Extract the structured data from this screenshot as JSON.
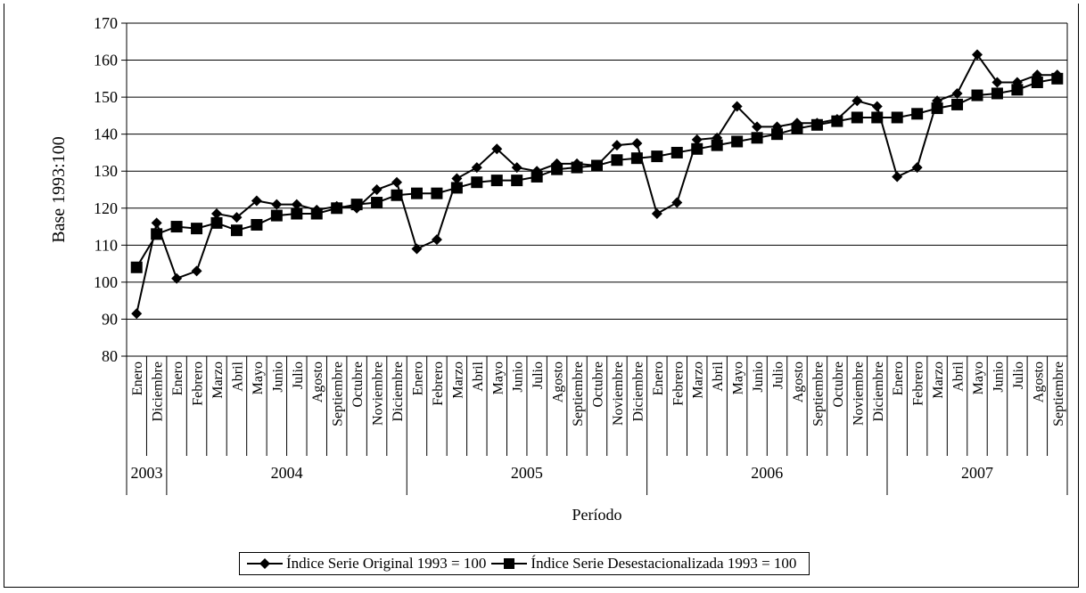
{
  "chart_data": {
    "type": "line",
    "title": "",
    "ylabel": "Base 1993:100",
    "xlabel": "Período",
    "ylim": [
      80,
      170
    ],
    "yticks": [
      80,
      90,
      100,
      110,
      120,
      130,
      140,
      150,
      160,
      170
    ],
    "grid": "horizontal",
    "legend_position": "bottom",
    "categories": [
      "Enero",
      "Diciembre",
      "Enero",
      "Febrero",
      "Marzo",
      "Abril",
      "Mayo",
      "Junio",
      "Julio",
      "Agosto",
      "Septiembre",
      "Octubre",
      "Noviembre",
      "Diciembre",
      "Enero",
      "Febrero",
      "Marzo",
      "Abril",
      "Mayo",
      "Junio",
      "Julio",
      "Agosto",
      "Septiembre",
      "Octubre",
      "Noviembre",
      "Diciembre",
      "Enero",
      "Febrero",
      "Marzo",
      "Abril",
      "Mayo",
      "Junio",
      "Julio",
      "Agosto",
      "Septiembre",
      "Octubre",
      "Noviembre",
      "Diciembre",
      "Enero",
      "Febrero",
      "Marzo",
      "Abril",
      "Mayo",
      "Junio",
      "Julio",
      "Agosto",
      "Septiembre"
    ],
    "year_groups": [
      {
        "label": "2003",
        "count": 2
      },
      {
        "label": "2004",
        "count": 12
      },
      {
        "label": "2005",
        "count": 12
      },
      {
        "label": "2006",
        "count": 12
      },
      {
        "label": "2007",
        "count": 9
      }
    ],
    "series": [
      {
        "name": "Índice Serie Original 1993 = 100",
        "marker": "diamond",
        "color": "#000000",
        "values": [
          91.5,
          116,
          101,
          103,
          118.5,
          117.5,
          122,
          121,
          121,
          119.5,
          120.5,
          120,
          125,
          127,
          109,
          111.5,
          128,
          131,
          136,
          131,
          130,
          132,
          132,
          131.5,
          137,
          137.5,
          118.5,
          121.5,
          138.5,
          139,
          147.5,
          142,
          142,
          143,
          143,
          144,
          149,
          147.5,
          128.5,
          131,
          149,
          151,
          161.5,
          154,
          154,
          156,
          156
        ]
      },
      {
        "name": "Índice Serie Desestacionalizada 1993 = 100",
        "marker": "square",
        "color": "#000000",
        "values": [
          104,
          113,
          115,
          114.5,
          116,
          114,
          115.5,
          118,
          118.5,
          118.5,
          120,
          121,
          121.5,
          123.5,
          124,
          124,
          125.5,
          127,
          127.5,
          127.5,
          128.5,
          130.5,
          131,
          131.5,
          133,
          133.5,
          134,
          135,
          136,
          137,
          138,
          139,
          140,
          141.5,
          142.5,
          143.5,
          144.5,
          144.5,
          144.5,
          145.5,
          147,
          148,
          150.5,
          151,
          152,
          154,
          155
        ]
      }
    ]
  }
}
